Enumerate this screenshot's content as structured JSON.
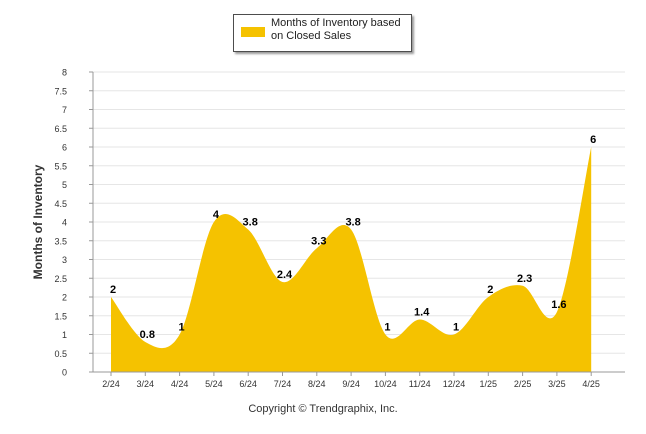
{
  "chart_data": {
    "type": "area",
    "categories": [
      "2/24",
      "3/24",
      "4/24",
      "5/24",
      "6/24",
      "7/24",
      "8/24",
      "9/24",
      "10/24",
      "11/24",
      "12/24",
      "1/25",
      "2/25",
      "3/25",
      "4/25"
    ],
    "series": [
      {
        "name": "Months of Inventory based on Closed Sales",
        "values": [
          2,
          0.8,
          1,
          4,
          3.8,
          2.4,
          3.3,
          3.8,
          1,
          1.4,
          1,
          2,
          2.3,
          1.6,
          6
        ]
      }
    ],
    "data_labels": [
      "2",
      "0.8",
      "1",
      "4",
      "3.8",
      "2.4",
      "3.3",
      "3.8",
      "1",
      "1.4",
      "1",
      "2",
      "2.3",
      "1.6",
      "6"
    ],
    "ylabel": "Months of Inventory",
    "ylim": [
      0,
      8
    ],
    "yticks": [
      "0",
      "0.5",
      "1",
      "1.5",
      "2",
      "2.5",
      "3",
      "3.5",
      "4",
      "4.5",
      "5",
      "5.5",
      "6",
      "6.5",
      "7",
      "7.5",
      "8"
    ],
    "legend_position": "top-center",
    "grid": true,
    "colors": {
      "fill": "#F5C200",
      "grid": "#e6e6e6",
      "axis": "#999999"
    }
  },
  "footer": {
    "copyright": "Copyright © Trendgraphix, Inc."
  }
}
